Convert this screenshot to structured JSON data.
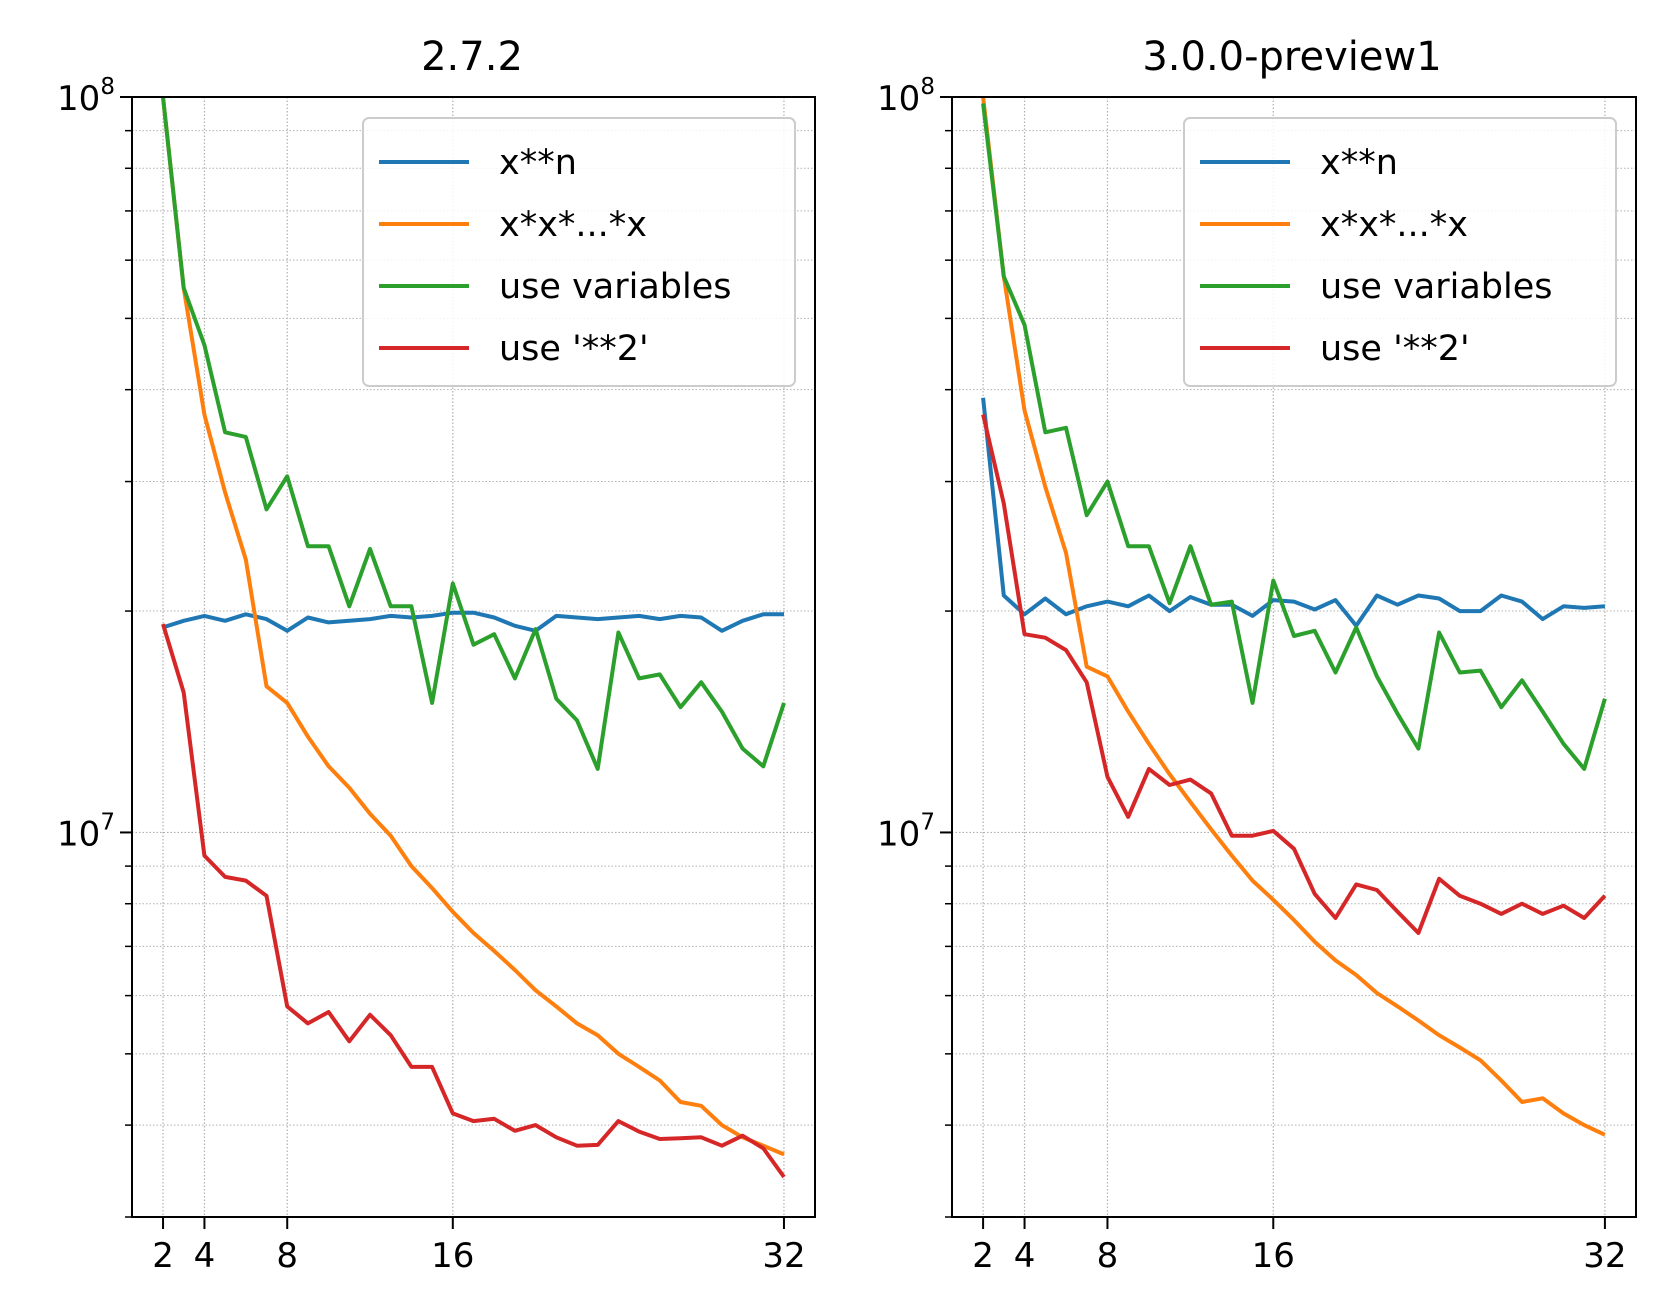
{
  "colors": {
    "x**n": "#1f77b4",
    "x*x*...*x": "#ff7f0e",
    "use variables": "#2ca02c",
    "use '**2'": "#d62728",
    "grid": "#b0b0b0"
  },
  "chart_data": [
    {
      "type": "line",
      "title": "2.7.2",
      "xlabel": "",
      "ylabel": "",
      "yscale": "log",
      "xlim": [
        0.5,
        33.5
      ],
      "ylim": [
        3000000,
        100000000
      ],
      "x_ticks": [
        2,
        4,
        8,
        16,
        32
      ],
      "y_major_ticks": [
        {
          "value": 10000000,
          "base": "10",
          "exp": "7"
        },
        {
          "value": 100000000,
          "base": "10",
          "exp": "8"
        }
      ],
      "grid": true,
      "legend": "top-right",
      "x": [
        2,
        3,
        4,
        5,
        6,
        7,
        8,
        9,
        10,
        11,
        12,
        13,
        14,
        15,
        16,
        17,
        18,
        19,
        20,
        21,
        22,
        23,
        24,
        25,
        26,
        27,
        28,
        29,
        30,
        31,
        32
      ],
      "series": [
        {
          "name": "x**n",
          "values": [
            19000000,
            19400000,
            19700000,
            19400000,
            19800000,
            19500000,
            18800000,
            19600000,
            19300000,
            19400000,
            19500000,
            19700000,
            19600000,
            19700000,
            19900000,
            19900000,
            19600000,
            19100000,
            18800000,
            19700000,
            19600000,
            19500000,
            19600000,
            19700000,
            19500000,
            19700000,
            19600000,
            18800000,
            19400000,
            19800000,
            19800000
          ]
        },
        {
          "name": "x*x*...*x",
          "values": [
            100000000,
            55000000,
            37000000,
            29000000,
            23500000,
            15800000,
            15000000,
            13500000,
            12300000,
            11500000,
            10600000,
            9900000,
            9000000,
            8400000,
            7800000,
            7300000,
            6900000,
            6500000,
            6100000,
            5800000,
            5500000,
            5300000,
            5000000,
            4800000,
            4600000,
            4300000,
            4250000,
            4000000,
            3850000,
            3750000,
            3650000
          ]
        },
        {
          "name": "use variables",
          "values": [
            100000000,
            55000000,
            46000000,
            35000000,
            34500000,
            27500000,
            30500000,
            24500000,
            24500000,
            20300000,
            24300000,
            20300000,
            20300000,
            15000000,
            21800000,
            18000000,
            18600000,
            16200000,
            18900000,
            15200000,
            14200000,
            12200000,
            18700000,
            16200000,
            16400000,
            14800000,
            16000000,
            14600000,
            13000000,
            12300000,
            15000000
          ]
        },
        {
          "name": "use '**2'",
          "values": [
            19200000,
            15500000,
            9300000,
            8700000,
            8600000,
            8200000,
            5800000,
            5500000,
            5700000,
            5200000,
            5650000,
            5300000,
            4800000,
            4800000,
            4150000,
            4050000,
            4080000,
            3930000,
            4000000,
            3850000,
            3750000,
            3760000,
            4050000,
            3920000,
            3830000,
            3840000,
            3850000,
            3750000,
            3870000,
            3720000,
            3400000
          ]
        }
      ]
    },
    {
      "type": "line",
      "title": "3.0.0-preview1",
      "xlabel": "",
      "ylabel": "",
      "yscale": "log",
      "xlim": [
        0.5,
        33.5
      ],
      "ylim": [
        3000000,
        100000000
      ],
      "x_ticks": [
        2,
        4,
        8,
        16,
        32
      ],
      "y_major_ticks": [
        {
          "value": 10000000,
          "base": "10",
          "exp": "7"
        },
        {
          "value": 100000000,
          "base": "10",
          "exp": "8"
        }
      ],
      "grid": true,
      "legend": "top-right",
      "x": [
        2,
        3,
        4,
        5,
        6,
        7,
        8,
        9,
        10,
        11,
        12,
        13,
        14,
        15,
        16,
        17,
        18,
        19,
        20,
        21,
        22,
        23,
        24,
        25,
        26,
        27,
        28,
        29,
        30,
        31,
        32
      ],
      "series": [
        {
          "name": "x**n",
          "values": [
            39000000,
            21000000,
            19800000,
            20800000,
            19800000,
            20300000,
            20600000,
            20300000,
            21000000,
            20000000,
            20900000,
            20400000,
            20400000,
            19700000,
            20700000,
            20600000,
            20100000,
            20700000,
            19100000,
            21000000,
            20400000,
            21000000,
            20800000,
            20000000,
            20000000,
            21000000,
            20600000,
            19500000,
            20300000,
            20200000,
            20300000
          ]
        },
        {
          "name": "x*x*...*x",
          "values": [
            100000000,
            57000000,
            37500000,
            29500000,
            24000000,
            16800000,
            16300000,
            14600000,
            13200000,
            12000000,
            11000000,
            10100000,
            9300000,
            8600000,
            8100000,
            7600000,
            7100000,
            6700000,
            6400000,
            6050000,
            5800000,
            5550000,
            5300000,
            5100000,
            4900000,
            4600000,
            4300000,
            4350000,
            4150000,
            4000000,
            3880000
          ]
        },
        {
          "name": "use variables",
          "values": [
            98000000,
            57000000,
            49000000,
            35000000,
            35500000,
            27000000,
            30000000,
            24500000,
            24500000,
            20500000,
            24500000,
            20400000,
            20600000,
            15000000,
            22000000,
            18500000,
            18800000,
            16500000,
            19000000,
            16300000,
            14500000,
            13000000,
            18700000,
            16500000,
            16600000,
            14800000,
            16100000,
            14600000,
            13200000,
            12200000,
            15200000
          ]
        },
        {
          "name": "use '**2'",
          "values": [
            37000000,
            28000000,
            18600000,
            18400000,
            17700000,
            16000000,
            11900000,
            10500000,
            12200000,
            11600000,
            11800000,
            11300000,
            9900000,
            9900000,
            10050000,
            9500000,
            8250000,
            7650000,
            8500000,
            8350000,
            7800000,
            7300000,
            8650000,
            8200000,
            8000000,
            7750000,
            8000000,
            7750000,
            7950000,
            7650000,
            8200000
          ]
        }
      ]
    }
  ]
}
